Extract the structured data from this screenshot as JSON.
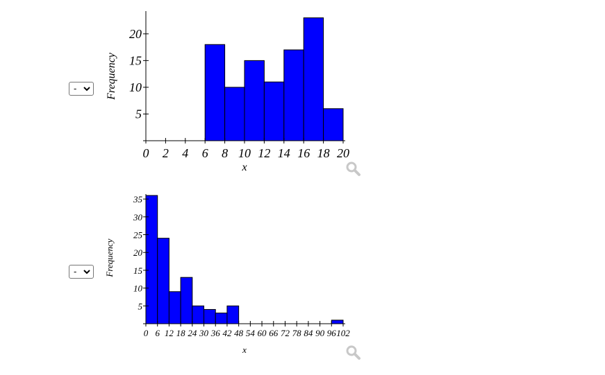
{
  "controls": [
    {
      "value": "-",
      "icon": "chevron-down-icon"
    },
    {
      "value": "-",
      "icon": "chevron-down-icon"
    }
  ],
  "zoom_icons": [
    "magnifier-icon",
    "magnifier-icon"
  ],
  "colors": {
    "bar_fill": "#0000ff",
    "bar_stroke": "#000000",
    "zoom": "#c8c8c8"
  },
  "chart_data": [
    {
      "type": "bar",
      "title": "",
      "xlabel": "x",
      "ylabel": "Frequency",
      "bin_edges": [
        6,
        8,
        10,
        12,
        14,
        16,
        18,
        20
      ],
      "values": [
        18,
        10,
        15,
        11,
        17,
        23,
        6
      ],
      "xlim": [
        0,
        20
      ],
      "ylim": [
        0,
        24
      ],
      "x_ticks": [
        0,
        2,
        4,
        6,
        8,
        10,
        12,
        14,
        16,
        18,
        20
      ],
      "x_tick_labels": [
        "0",
        "2",
        "4",
        "6",
        "8",
        "10",
        "12",
        "14",
        "16",
        "18",
        "20"
      ],
      "y_ticks": [
        5,
        10,
        15,
        20
      ],
      "y_tick_labels": [
        "5",
        "10",
        "15",
        "20"
      ],
      "grid": false
    },
    {
      "type": "bar",
      "title": "",
      "xlabel": "x",
      "ylabel": "Frequency",
      "bin_edges": [
        0,
        6,
        12,
        18,
        24,
        30,
        36,
        42,
        48,
        54,
        60,
        66,
        72,
        78,
        84,
        90,
        96,
        102
      ],
      "values": [
        36,
        24,
        9,
        13,
        5,
        4,
        3,
        5,
        0,
        0,
        0,
        0,
        0,
        0,
        0,
        0,
        1
      ],
      "xlim": [
        0,
        102
      ],
      "ylim": [
        0,
        36
      ],
      "x_ticks": [
        0,
        6,
        12,
        18,
        24,
        30,
        36,
        42,
        48,
        54,
        60,
        66,
        72,
        78,
        84,
        90,
        96,
        102
      ],
      "x_tick_labels": [
        "0",
        "6",
        "12",
        "18",
        "24",
        "30",
        "36",
        "42",
        "48",
        "54",
        "60",
        "66",
        "72",
        "78",
        "84",
        "90",
        "96",
        "102"
      ],
      "y_ticks": [
        5,
        10,
        15,
        20,
        25,
        30,
        35
      ],
      "y_tick_labels": [
        "5",
        "10",
        "15",
        "20",
        "25",
        "30",
        "35"
      ],
      "grid": false
    }
  ]
}
